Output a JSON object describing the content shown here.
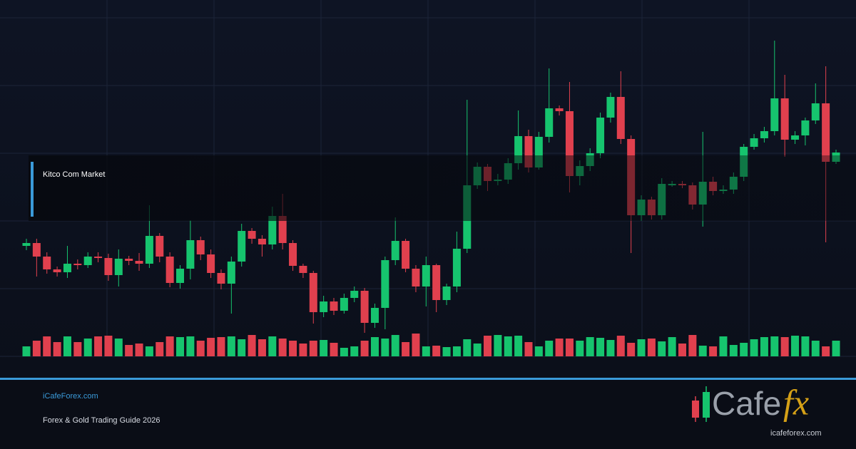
{
  "chart_data": {
    "type": "candlestick",
    "ylim": [
      0,
      500
    ],
    "open": [
      155,
      159,
      140,
      122,
      118,
      130,
      128,
      140,
      138,
      114,
      137,
      134,
      130,
      169,
      140,
      103,
      123,
      163,
      143,
      117,
      102,
      133,
      176,
      165,
      157,
      197,
      159,
      127,
      117,
      62,
      77,
      64,
      82,
      92,
      47,
      68,
      135,
      162,
      123,
      98,
      128,
      79,
      98,
      151,
      240,
      266,
      246,
      248,
      271,
      309,
      265,
      308,
      348,
      344,
      253,
      267,
      285,
      335,
      364,
      305,
      198,
      220,
      198,
      242,
      242,
      240,
      213,
      245,
      232,
      234,
      252,
      294,
      306,
      316,
      362,
      304,
      310,
      331,
      355,
      273
    ],
    "high": [
      165,
      165,
      146,
      126,
      155,
      136,
      146,
      146,
      144,
      150,
      141,
      145,
      212,
      173,
      146,
      128,
      191,
      168,
      150,
      122,
      140,
      186,
      180,
      170,
      210,
      228,
      163,
      130,
      120,
      85,
      82,
      88,
      98,
      96,
      74,
      140,
      195,
      165,
      128,
      140,
      130,
      102,
      175,
      360,
      272,
      270,
      256,
      278,
      345,
      318,
      315,
      404,
      352,
      385,
      275,
      292,
      342,
      370,
      400,
      310,
      226,
      224,
      250,
      246,
      246,
      244,
      315,
      252,
      240,
      258,
      298,
      312,
      322,
      443,
      395,
      316,
      335,
      383,
      407,
      290
    ],
    "low": [
      149,
      112,
      116,
      112,
      110,
      122,
      124,
      132,
      106,
      98,
      128,
      120,
      124,
      132,
      97,
      95,
      108,
      135,
      110,
      94,
      60,
      126,
      158,
      140,
      150,
      150,
      120,
      110,
      46,
      55,
      58,
      60,
      76,
      33,
      40,
      38,
      128,
      118,
      90,
      70,
      62,
      72,
      90,
      145,
      235,
      232,
      240,
      242,
      262,
      258,
      262,
      300,
      338,
      230,
      240,
      260,
      278,
      328,
      298,
      145,
      190,
      192,
      192,
      238,
      236,
      206,
      182,
      226,
      228,
      228,
      246,
      290,
      300,
      310,
      280,
      298,
      296,
      326,
      160,
      270
    ],
    "close": [
      159,
      140,
      122,
      118,
      130,
      128,
      140,
      138,
      114,
      137,
      134,
      130,
      169,
      140,
      103,
      123,
      163,
      143,
      117,
      102,
      133,
      176,
      165,
      157,
      197,
      159,
      127,
      117,
      62,
      77,
      64,
      82,
      92,
      47,
      68,
      135,
      162,
      123,
      98,
      128,
      79,
      98,
      151,
      240,
      266,
      246,
      248,
      271,
      309,
      265,
      308,
      348,
      344,
      253,
      267,
      285,
      335,
      364,
      305,
      198,
      220,
      198,
      242,
      242,
      240,
      213,
      245,
      232,
      234,
      252,
      294,
      306,
      316,
      362,
      304,
      310,
      331,
      355,
      273,
      286
    ],
    "volume": [
      14,
      22,
      28,
      20,
      28,
      20,
      25,
      28,
      29,
      25,
      16,
      18,
      14,
      20,
      28,
      27,
      28,
      22,
      26,
      27,
      28,
      24,
      30,
      24,
      28,
      25,
      22,
      18,
      22,
      23,
      19,
      12,
      14,
      22,
      27,
      25,
      30,
      20,
      32,
      14,
      15,
      13,
      14,
      24,
      18,
      29,
      30,
      28,
      29,
      20,
      14,
      22,
      25,
      25,
      22,
      27,
      26,
      23,
      29,
      19,
      24,
      25,
      21,
      27,
      18,
      30,
      15,
      14,
      28,
      16,
      19,
      24,
      27,
      28,
      27,
      29,
      28,
      22,
      14,
      22
    ],
    "colors": {
      "up": "#16c46e",
      "down": "#e0404e"
    }
  },
  "caption": "Kitco Com Market",
  "footer": {
    "site": "iCafeForex.com",
    "subtitle": "Forex & Gold Trading Guide 2026"
  },
  "logo": {
    "word": "Cafe",
    "accent": "fx",
    "url": "icafeforex.com"
  }
}
